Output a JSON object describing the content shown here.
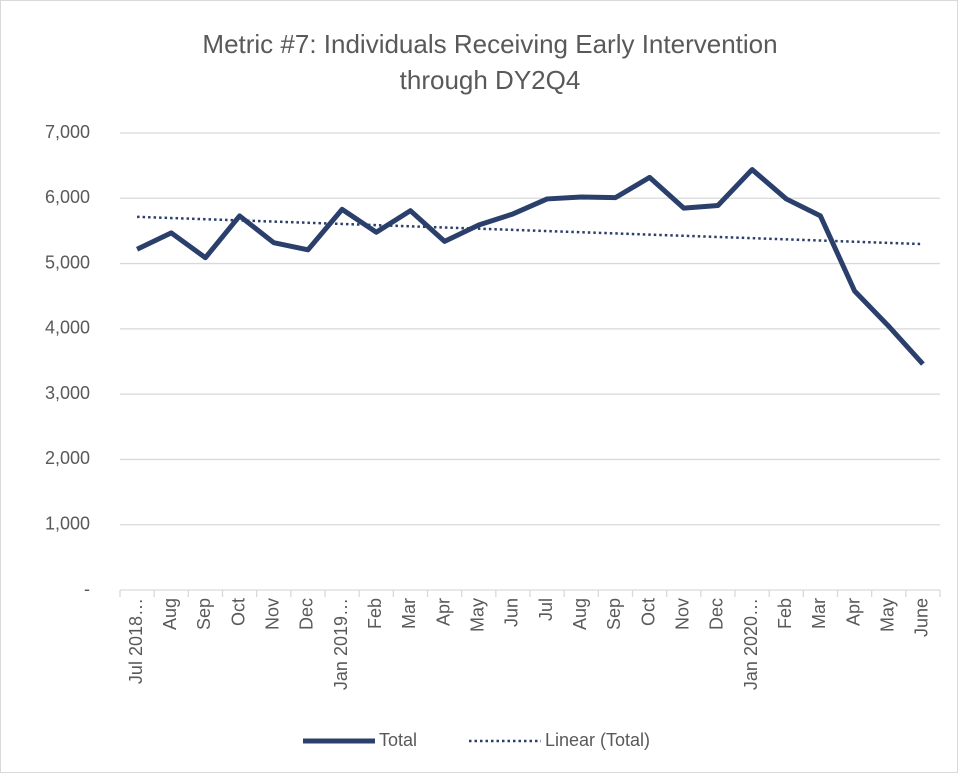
{
  "chart_data": {
    "type": "line",
    "title": [
      "Metric #7: Individuals Receiving Early Intervention",
      "through DY2Q4"
    ],
    "categories": [
      "Jul 2018…",
      "Aug",
      "Sep",
      "Oct",
      "Nov",
      "Dec",
      "Jan 2019…",
      "Feb",
      "Mar",
      "Apr",
      "May",
      "Jun",
      "Jul",
      "Aug",
      "Sep",
      "Oct",
      "Nov",
      "Dec",
      "Jan 2020…",
      "Feb",
      "Mar",
      "Apr",
      "May",
      "June"
    ],
    "series": [
      {
        "name": "Total",
        "color": "#2b3f6c",
        "values": [
          5220,
          5470,
          5090,
          5730,
          5320,
          5210,
          5830,
          5480,
          5810,
          5340,
          5590,
          5760,
          5990,
          6020,
          6010,
          6320,
          5850,
          5890,
          6440,
          5990,
          5730,
          4580,
          4040,
          3460
        ]
      }
    ],
    "trendline": {
      "name": "Linear (Total)",
      "type": "linear",
      "of": "Total",
      "color": "#2b3f6c",
      "style": "dotted"
    },
    "ylim": [
      0,
      7000
    ],
    "yticks": [
      {
        "value": 0,
        "label": "-"
      },
      {
        "value": 1000,
        "label": "1,000"
      },
      {
        "value": 2000,
        "label": "2,000"
      },
      {
        "value": 3000,
        "label": "3,000"
      },
      {
        "value": 4000,
        "label": "4,000"
      },
      {
        "value": 5000,
        "label": "5,000"
      },
      {
        "value": 6000,
        "label": "6,000"
      },
      {
        "value": 7000,
        "label": "7,000"
      }
    ],
    "grid": true,
    "legend": "bottom"
  }
}
